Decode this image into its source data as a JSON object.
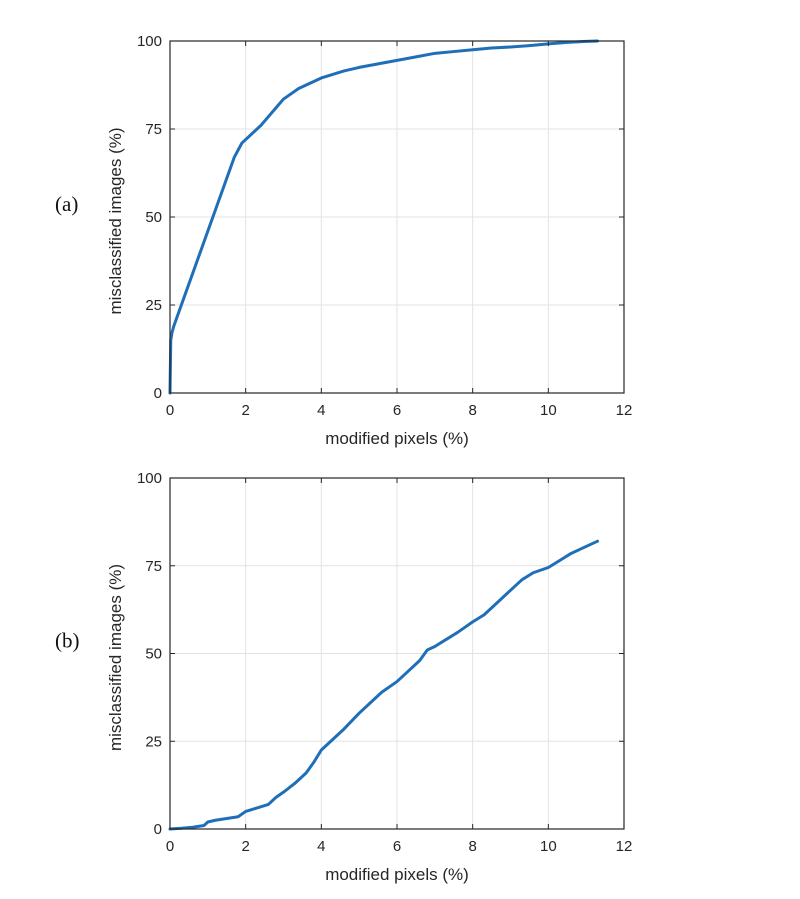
{
  "chart_data": [
    {
      "type": "line",
      "panel_label": "(a)",
      "xlabel": "modified pixels (%)",
      "ylabel": "misclassified images (%)",
      "xlim": [
        0,
        12
      ],
      "ylim": [
        0,
        100
      ],
      "xticks": [
        "0",
        "2",
        "4",
        "6",
        "8",
        "10",
        "12"
      ],
      "yticks": [
        "0",
        "25",
        "50",
        "75",
        "100"
      ],
      "grid": true,
      "line_color": "#1f6fb8",
      "series": [
        {
          "x": [
            0,
            0.02,
            0.05,
            0.1,
            0.2,
            0.3,
            0.4,
            0.5,
            0.6,
            0.7,
            0.8,
            0.9,
            1.0,
            1.1,
            1.2,
            1.3,
            1.4,
            1.5,
            1.6,
            1.7,
            1.8,
            1.9,
            2.0,
            2.2,
            2.4,
            2.6,
            2.8,
            3.0,
            3.2,
            3.4,
            3.6,
            3.8,
            4.0,
            4.3,
            4.6,
            5.0,
            5.5,
            6.0,
            6.5,
            7.0,
            7.5,
            8.0,
            8.5,
            9.0,
            9.5,
            10.0,
            10.5,
            11.0,
            11.3
          ],
          "y": [
            0,
            15,
            17,
            19,
            22,
            25,
            28,
            31,
            34,
            37,
            40,
            43,
            46,
            49,
            52,
            55,
            58,
            61,
            64,
            67,
            69,
            71,
            72,
            74,
            76,
            78.5,
            81,
            83.5,
            85,
            86.5,
            87.5,
            88.5,
            89.5,
            90.5,
            91.5,
            92.5,
            93.5,
            94.5,
            95.5,
            96.5,
            97,
            97.5,
            98,
            98.3,
            98.7,
            99.2,
            99.6,
            99.9,
            100
          ]
        }
      ]
    },
    {
      "type": "line",
      "panel_label": "(b)",
      "xlabel": "modified pixels (%)",
      "ylabel": "misclassified images (%)",
      "xlim": [
        0,
        12
      ],
      "ylim": [
        0,
        100
      ],
      "xticks": [
        "0",
        "2",
        "4",
        "6",
        "8",
        "10",
        "12"
      ],
      "yticks": [
        "0",
        "25",
        "50",
        "75",
        "100"
      ],
      "grid": true,
      "line_color": "#1f6fb8",
      "series": [
        {
          "x": [
            0,
            0.3,
            0.6,
            0.9,
            1.0,
            1.2,
            1.5,
            1.8,
            2.0,
            2.3,
            2.6,
            2.8,
            3.0,
            3.3,
            3.6,
            3.8,
            4.0,
            4.3,
            4.6,
            5.0,
            5.3,
            5.6,
            6.0,
            6.3,
            6.6,
            6.8,
            7.0,
            7.3,
            7.6,
            8.0,
            8.3,
            8.6,
            9.0,
            9.3,
            9.6,
            10.0,
            10.3,
            10.6,
            11.0,
            11.3
          ],
          "y": [
            0,
            0.2,
            0.5,
            1,
            2,
            2.5,
            3,
            3.5,
            5,
            6,
            7,
            9,
            10.5,
            13,
            16,
            19,
            22.5,
            25.5,
            28.5,
            33,
            36,
            39,
            42,
            45,
            48,
            51,
            52,
            54,
            56,
            59,
            61,
            64,
            68,
            71,
            73,
            74.5,
            76.5,
            78.5,
            80.5,
            82
          ]
        }
      ]
    }
  ]
}
